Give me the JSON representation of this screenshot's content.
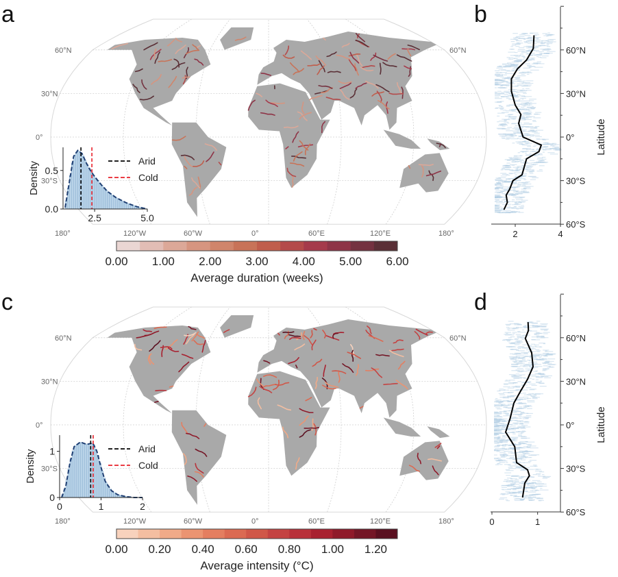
{
  "chart_data": [
    {
      "panel": "a",
      "type": "map",
      "lat_labels": [
        "60°N",
        "30°N",
        "0°",
        "30°S"
      ],
      "lon_labels": [
        "180°",
        "120°W",
        "60°W",
        "0°",
        "60°E",
        "120°E",
        "180°"
      ],
      "land_color": "#a9a9a9",
      "colorbar": {
        "title": "Average duration (weeks)",
        "ticks": [
          "0.00",
          "1.00",
          "2.00",
          "3.00",
          "4.00",
          "5.00",
          "6.00"
        ],
        "range": [
          0,
          6
        ],
        "colors": [
          "#ead6d3",
          "#e2bdb5",
          "#dca898",
          "#d69580",
          "#d0856b",
          "#c87358",
          "#c05e4c",
          "#b44a4a",
          "#a53a4b",
          "#8e3447",
          "#743240",
          "#5a2f36"
        ]
      },
      "inset": {
        "type": "histogram",
        "ylabel": "Density",
        "xticks": [
          "2.5",
          "5.0"
        ],
        "xtick_values": [
          2.5,
          5.0
        ],
        "yticks": [
          "0.0",
          "0.5"
        ],
        "ytick_values": [
          0,
          0.5
        ],
        "xlim": [
          1,
          5
        ],
        "ylim": [
          0,
          0.8
        ],
        "density_x": [
          1.1,
          1.3,
          1.5,
          1.7,
          1.9,
          2.1,
          2.3,
          2.5,
          2.8,
          3.1,
          3.5,
          4.0,
          4.5,
          5.0
        ],
        "density_y": [
          0.02,
          0.35,
          0.68,
          0.76,
          0.72,
          0.6,
          0.5,
          0.42,
          0.32,
          0.23,
          0.15,
          0.08,
          0.03,
          0.0
        ],
        "legend": [
          {
            "name": "Arid",
            "value": 1.85,
            "color": "#000000"
          },
          {
            "name": "Cold",
            "value": 2.37,
            "color": "#e8202a"
          }
        ]
      }
    },
    {
      "panel": "b",
      "type": "line",
      "ylabel": "Latitude",
      "yticks": [
        "60°N",
        "30°N",
        "0°",
        "30°S",
        "60°S"
      ],
      "ytick_values": [
        60,
        30,
        0,
        -30,
        -60
      ],
      "xticks": [
        "2",
        "4"
      ],
      "xtick_values": [
        2,
        4
      ],
      "xlim": [
        1,
        4
      ],
      "ylim": [
        -60,
        90
      ],
      "line_color": "#000000",
      "scatter_color": "#a9c8df",
      "lat": [
        70,
        61,
        53,
        47,
        40,
        31.5,
        22,
        15.5,
        9.4,
        0,
        -5.5,
        -10,
        -15,
        -26,
        -30,
        -36,
        -40,
        -45,
        -50
      ],
      "value": [
        2.83,
        2.8,
        2.5,
        2.1,
        1.83,
        1.83,
        2.0,
        2.25,
        2.15,
        2.35,
        3.15,
        3.05,
        2.5,
        2.3,
        1.9,
        1.75,
        1.6,
        1.65,
        1.5
      ]
    },
    {
      "panel": "c",
      "type": "map",
      "lat_labels": [
        "60°N",
        "30°N",
        "0°",
        "30°S"
      ],
      "lon_labels": [
        "180°",
        "120°W",
        "60°W",
        "0°",
        "60°E",
        "120°E",
        "180°"
      ],
      "land_color": "#a9a9a9",
      "colorbar": {
        "title": "Average intensity (°C)",
        "ticks": [
          "0.00",
          "0.20",
          "0.40",
          "0.60",
          "0.80",
          "1.00",
          "1.20"
        ],
        "range": [
          0,
          1.3
        ],
        "colors": [
          "#f8d2bd",
          "#f4bea1",
          "#f0aa88",
          "#eb9472",
          "#e47e60",
          "#db6a52",
          "#d05748",
          "#c44342",
          "#b8313a",
          "#a82130",
          "#8f1a2a",
          "#741626",
          "#5a1020"
        ]
      },
      "inset": {
        "type": "histogram",
        "ylabel": "Density",
        "xticks": [
          "0",
          "1",
          "2"
        ],
        "xtick_values": [
          0,
          1,
          2
        ],
        "yticks": [
          "0",
          "1"
        ],
        "ytick_values": [
          0,
          1
        ],
        "xlim": [
          0,
          2
        ],
        "ylim": [
          0,
          1.35
        ],
        "density_x": [
          0.05,
          0.15,
          0.25,
          0.35,
          0.5,
          0.65,
          0.8,
          0.9,
          1.0,
          1.1,
          1.25,
          1.4,
          1.6,
          1.8,
          2.0
        ],
        "density_y": [
          0.0,
          0.25,
          0.75,
          1.1,
          1.2,
          1.15,
          1.18,
          1.0,
          0.65,
          0.35,
          0.15,
          0.06,
          0.02,
          0.0,
          0.0
        ],
        "legend": [
          {
            "name": "Arid",
            "value": 0.75,
            "color": "#000000"
          },
          {
            "name": "Cold",
            "value": 0.81,
            "color": "#e8202a"
          }
        ]
      }
    },
    {
      "panel": "d",
      "type": "line",
      "ylabel": "Latitude",
      "yticks": [
        "60°N",
        "30°N",
        "0°",
        "30°S",
        "60°S"
      ],
      "ytick_values": [
        60,
        30,
        0,
        -30,
        -60
      ],
      "xticks": [
        "0",
        "1"
      ],
      "xtick_values": [
        0,
        1
      ],
      "xlim": [
        0,
        1.5
      ],
      "ylim": [
        -60,
        90
      ],
      "line_color": "#000000",
      "scatter_color": "#a9c8df",
      "lat": [
        70.7,
        65,
        59.5,
        49.6,
        40,
        31.4,
        23.4,
        15,
        4.7,
        -5,
        -15,
        -26,
        -30.9,
        -35,
        -40,
        -50
      ],
      "value": [
        0.79,
        0.8,
        0.73,
        0.87,
        0.9,
        0.78,
        0.63,
        0.48,
        0.4,
        0.3,
        0.5,
        0.54,
        0.78,
        0.82,
        0.72,
        0.67
      ]
    }
  ]
}
